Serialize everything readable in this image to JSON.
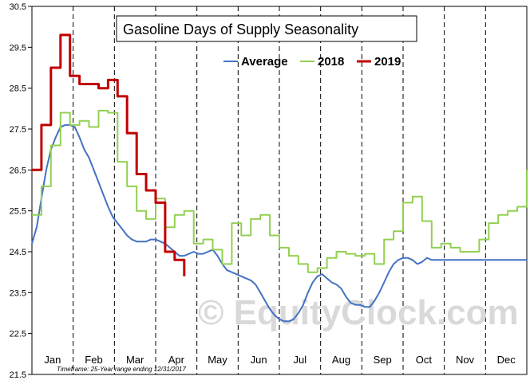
{
  "chart_data": {
    "type": "line",
    "title": "Gasoline Days of Supply Seasonality",
    "footnote": "Timeframe: 25-Year range ending 12/31/2017",
    "watermark": "© EquityClock.com",
    "months": [
      "Jan",
      "Feb",
      "Mar",
      "Apr",
      "May",
      "Jun",
      "Jul",
      "Aug",
      "Sep",
      "Oct",
      "Nov",
      "Dec"
    ],
    "y_ticks": [
      "21.5",
      "22.5",
      "23.5",
      "24.5",
      "25.5",
      "26.5",
      "27.5",
      "28.5",
      "29.5",
      "30.5"
    ],
    "ylim": [
      21.5,
      30.5
    ],
    "xlim": [
      0,
      52
    ],
    "grid": "vertical dashed month separators",
    "legend_position": "top-center",
    "series": [
      {
        "name": "Average",
        "color": "#4472c4",
        "x": [
          0,
          0.5,
          1,
          1.5,
          2,
          2.5,
          3,
          3.5,
          4,
          4.5,
          5,
          5.5,
          6,
          6.5,
          7,
          7.5,
          8,
          8.5,
          9,
          9.5,
          10,
          10.5,
          11,
          11.5,
          12,
          12.5,
          13,
          13.5,
          14,
          14.5,
          15,
          15.5,
          16,
          16.5,
          17,
          17.5,
          18,
          18.5,
          19,
          19.5,
          20,
          20.5,
          21,
          21.5,
          22,
          22.5,
          23,
          23.5,
          24,
          24.5,
          25,
          25.5,
          26,
          26.5,
          27,
          27.5,
          28,
          28.5,
          29,
          29.5,
          30,
          30.5,
          31,
          31.5,
          32,
          32.5,
          33,
          33.5,
          34,
          34.5,
          35,
          35.5,
          36,
          36.5,
          37,
          37.5,
          38,
          38.5,
          39,
          39.5,
          40,
          40.5,
          41,
          41.5,
          42,
          42.5,
          43,
          43.5,
          44,
          44.5,
          45,
          45.5,
          46,
          46.5,
          47,
          47.5,
          48,
          48.5,
          49,
          49.5,
          50,
          50.5,
          51,
          51.5,
          52
        ],
        "y": [
          24.7,
          25.1,
          25.8,
          26.5,
          27.0,
          27.3,
          27.55,
          27.6,
          27.6,
          27.55,
          27.3,
          27.0,
          26.8,
          26.5,
          26.2,
          25.9,
          25.6,
          25.35,
          25.2,
          25.05,
          24.9,
          24.8,
          24.75,
          24.75,
          24.75,
          24.8,
          24.8,
          24.75,
          24.7,
          24.6,
          24.5,
          24.4,
          24.4,
          24.45,
          24.5,
          24.45,
          24.45,
          24.5,
          24.55,
          24.4,
          24.2,
          24.05,
          24.0,
          23.95,
          23.9,
          23.85,
          23.8,
          23.7,
          23.5,
          23.3,
          23.1,
          22.95,
          22.85,
          22.8,
          22.8,
          22.85,
          23.0,
          23.2,
          23.5,
          23.75,
          23.9,
          23.95,
          23.85,
          23.75,
          23.7,
          23.6,
          23.4,
          23.25,
          23.2,
          23.2,
          23.15,
          23.15,
          23.3,
          23.5,
          23.75,
          24.0,
          24.2,
          24.3,
          24.35,
          24.35,
          24.3,
          24.2,
          24.25,
          24.35,
          24.3,
          24.3,
          24.3,
          24.3,
          24.3,
          24.3,
          24.3,
          24.3,
          24.3,
          24.3,
          24.3,
          24.3,
          24.3,
          24.3,
          24.3,
          24.3,
          24.3,
          24.3,
          24.3,
          24.3,
          24.3
        ]
      },
      {
        "name": "2018",
        "color": "#92d050",
        "x": [
          0,
          1,
          2,
          3,
          4,
          5,
          6,
          7,
          8,
          9,
          10,
          11,
          12,
          13,
          14,
          15,
          16,
          17,
          18,
          19,
          20,
          21,
          22,
          23,
          24,
          25,
          26,
          27,
          28,
          29,
          30,
          31,
          32,
          33,
          34,
          35,
          36,
          37,
          38,
          39,
          40,
          41,
          42,
          43,
          44,
          45,
          46,
          47,
          48,
          49,
          50,
          51,
          52
        ],
        "y": [
          25.4,
          26.1,
          27.1,
          27.9,
          27.6,
          27.7,
          27.55,
          27.95,
          27.9,
          26.7,
          26.1,
          25.5,
          25.3,
          25.8,
          25.1,
          25.4,
          25.5,
          24.7,
          24.8,
          24.55,
          24.2,
          25.2,
          24.9,
          25.3,
          25.4,
          24.9,
          24.6,
          24.4,
          24.2,
          24.0,
          24.1,
          24.35,
          24.5,
          24.45,
          24.4,
          24.45,
          24.2,
          24.8,
          25.0,
          25.7,
          25.85,
          25.25,
          24.6,
          24.7,
          24.6,
          24.5,
          24.5,
          24.8,
          25.2,
          25.4,
          25.5,
          25.6,
          26.5
        ]
      },
      {
        "name": "2019",
        "color": "#c00000",
        "x": [
          0,
          1,
          2,
          3,
          4,
          5,
          6,
          7,
          8,
          9,
          10,
          11,
          12,
          13,
          14,
          15,
          16
        ],
        "y": [
          26.5,
          27.6,
          29.0,
          29.8,
          28.8,
          28.6,
          28.6,
          28.5,
          28.7,
          28.3,
          27.4,
          26.4,
          26.0,
          25.7,
          24.5,
          24.3,
          23.9
        ]
      }
    ]
  }
}
